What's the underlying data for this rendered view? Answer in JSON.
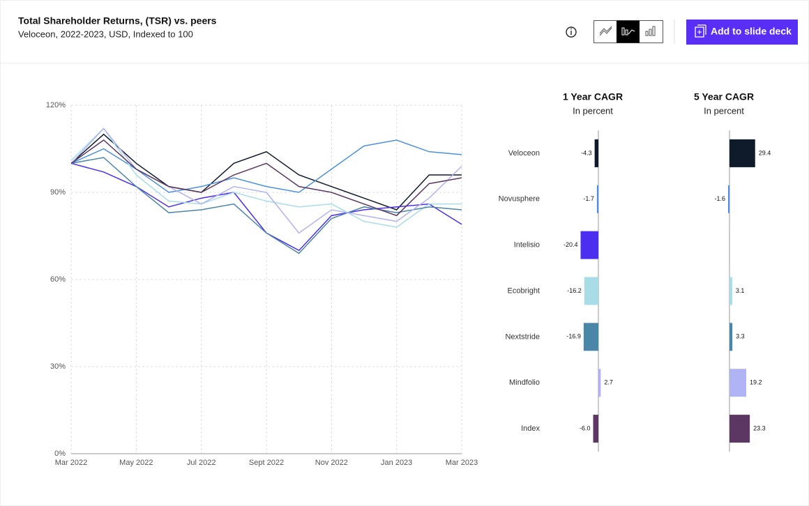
{
  "header": {
    "title": "Total Shareholder Returns, (TSR) vs. peers",
    "subtitle": "Veloceon, 2022-2023, USD, Indexed to 100",
    "button": "Add to slide deck"
  },
  "chart_data": [
    {
      "type": "line",
      "x": [
        "Mar 2022",
        null,
        "May 2022",
        null,
        "Jul 2022",
        null,
        "Sept 2022",
        null,
        "Nov 2022",
        null,
        "Jan 2023",
        null,
        "Mar 2023"
      ],
      "ylim": [
        0,
        120
      ],
      "yticks": [
        {
          "value": 0,
          "label": "0%"
        },
        {
          "value": 30,
          "label": "30%"
        },
        {
          "value": 60,
          "label": "60%"
        },
        {
          "value": 90,
          "label": "90%"
        },
        {
          "value": 120,
          "label": "120%"
        }
      ],
      "grid": true,
      "series": [
        {
          "name": "Veloceon",
          "color": "#0f1a2a",
          "values": [
            100,
            110,
            100,
            92,
            90,
            100,
            104,
            96,
            92,
            88,
            84,
            96,
            96
          ]
        },
        {
          "name": "Novusphere",
          "color": "#4a90e2",
          "values": [
            100,
            105,
            98,
            90,
            92,
            95,
            92,
            90,
            98,
            106,
            108,
            104,
            103
          ]
        },
        {
          "name": "Intelisio",
          "color": "#4b2ef0",
          "values": [
            100,
            97,
            92,
            85,
            88,
            90,
            76,
            70,
            82,
            84,
            85,
            86,
            79
          ]
        },
        {
          "name": "Ecobright",
          "color": "#a8dde8",
          "values": [
            101,
            112,
            96,
            87,
            86,
            90,
            87,
            85,
            86,
            80,
            78,
            86,
            86
          ]
        },
        {
          "name": "Nextstride",
          "color": "#4a86a8",
          "values": [
            100,
            102,
            92,
            83,
            84,
            86,
            76,
            69,
            81,
            85,
            83,
            85,
            84
          ]
        },
        {
          "name": "Mindfolio",
          "color": "#b0b4f5",
          "values": [
            100,
            112,
            98,
            92,
            86,
            92,
            90,
            76,
            84,
            82,
            80,
            88,
            99
          ]
        },
        {
          "name": "Index",
          "color": "#5c3763",
          "values": [
            100,
            108,
            98,
            92,
            90,
            96,
            100,
            92,
            90,
            86,
            82,
            93,
            95
          ]
        }
      ]
    },
    {
      "type": "hbar",
      "title": "1 Year CAGR",
      "subtitle": "In percent",
      "categories": [
        "Veloceon",
        "Novusphere",
        "Intelisio",
        "Ecobright",
        "Nextstride",
        "Mindfolio",
        "Index"
      ],
      "values": [
        -4.3,
        -1.7,
        -20.4,
        -16.2,
        -16.9,
        2.7,
        -6
      ],
      "value_labels": [
        "-4.3",
        "-1.7",
        "-20.4",
        "-16.2",
        "-16.9",
        "2.7",
        "-6.0"
      ],
      "colors": [
        "#0f1a2a",
        "#4a90e2",
        "#4b2ef0",
        "#a8dde8",
        "#4a86a8",
        "#b0b4f5",
        "#5c3763"
      ],
      "xlim": [
        -40,
        40
      ]
    },
    {
      "type": "hbar",
      "title": "5 Year CAGR",
      "subtitle": "In percent",
      "values": [
        29.4,
        -1.6,
        null,
        3.1,
        3.3,
        19.2,
        23.3
      ],
      "value_labels": [
        "29.4",
        "-1.6",
        null,
        "3.1",
        "3.3",
        "19.2",
        "23.3"
      ],
      "colors": [
        "#0f1a2a",
        "#4a90e2",
        "#4b2ef0",
        "#a8dde8",
        "#4a86a8",
        "#b0b4f5",
        "#5c3763"
      ],
      "xlim": [
        -40,
        40
      ]
    }
  ]
}
